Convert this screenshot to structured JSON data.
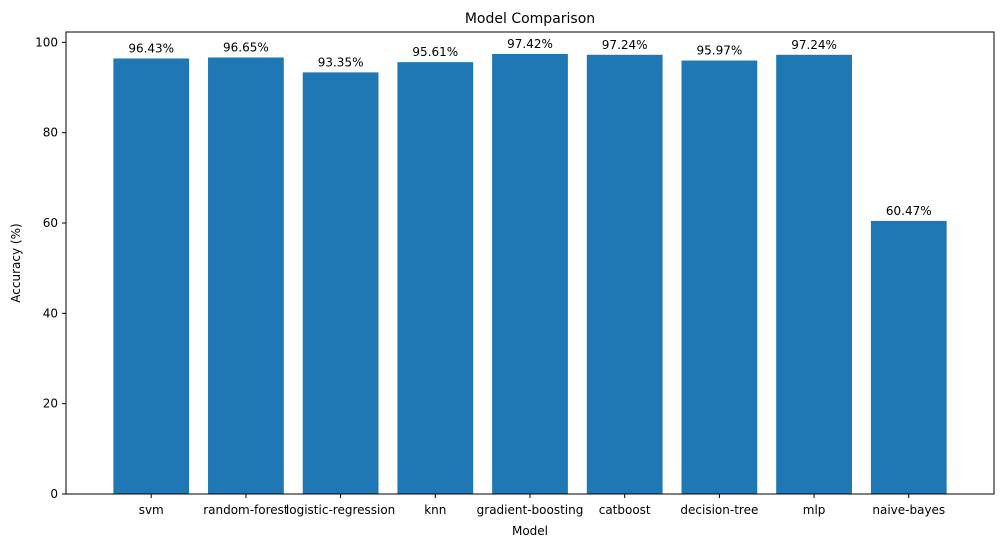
{
  "chart_data": {
    "type": "bar",
    "title": "Model Comparison",
    "xlabel": "Model",
    "ylabel": "Accuracy (%)",
    "categories": [
      "svm",
      "random-forest",
      "logistic-regression",
      "knn",
      "gradient-boosting",
      "catboost",
      "decision-tree",
      "mlp",
      "naive-bayes"
    ],
    "values": [
      96.43,
      96.65,
      93.35,
      95.61,
      97.42,
      97.24,
      95.97,
      97.24,
      60.47
    ],
    "value_labels": [
      "96.43%",
      "96.65%",
      "93.35%",
      "95.61%",
      "97.42%",
      "97.24%",
      "95.97%",
      "97.24%",
      "60.47%"
    ],
    "ylim": [
      0,
      102.29
    ],
    "yticks": [
      0,
      20,
      40,
      60,
      80,
      100
    ],
    "ytick_labels": [
      "0",
      "20",
      "40",
      "60",
      "80",
      "100"
    ],
    "bar_color": "#1f77b4",
    "grid": false,
    "legend": "none"
  }
}
